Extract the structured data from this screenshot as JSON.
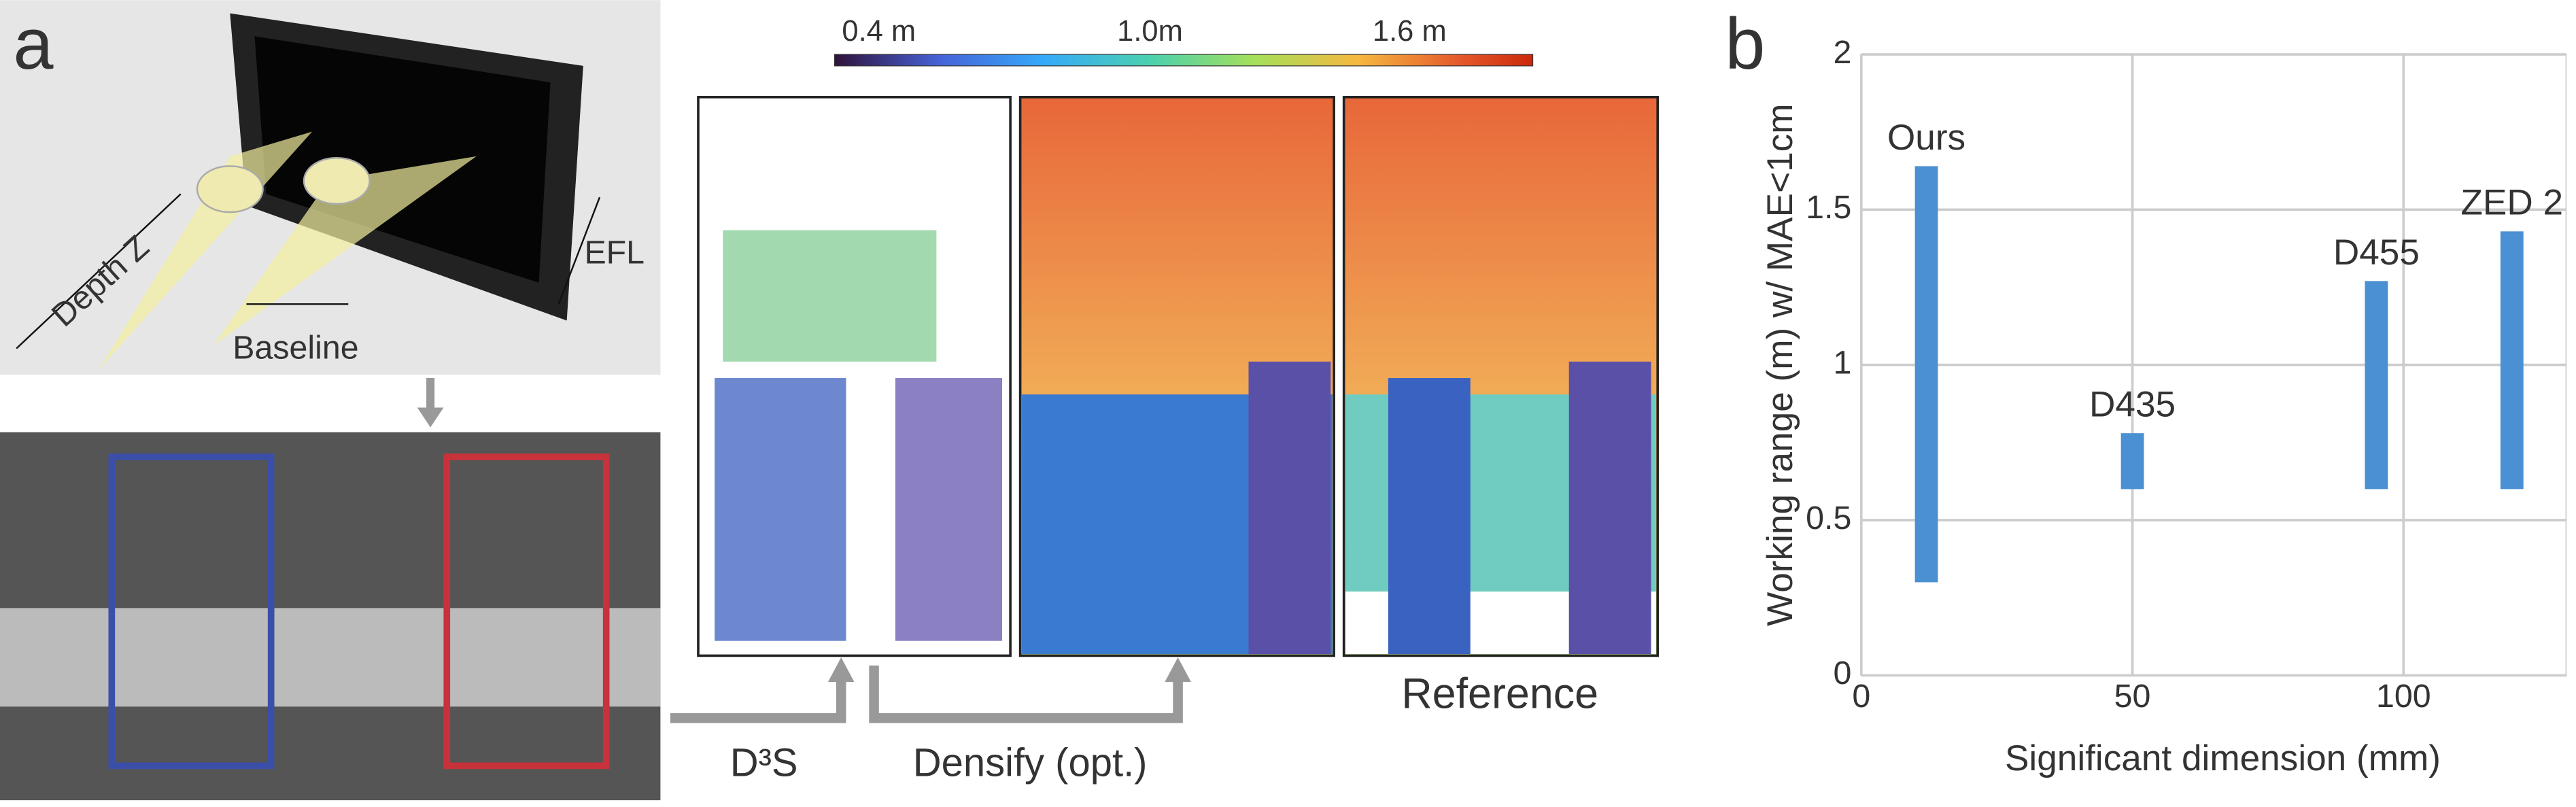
{
  "figure": {
    "panel_a": "a",
    "depth": "Depth Z",
    "baseline": "Baseline",
    "efl": "EFL",
    "colorbar_labels": [
      "0.4 m",
      "1.0m",
      "1.6 m"
    ],
    "step1": "D³S",
    "step2": "Densify (opt.)",
    "reference": "Reference"
  },
  "chart_data": {
    "type": "range-bar",
    "panel_label": "b",
    "x_label": "Significant dimension (mm)",
    "y_label": "Working range (m) w/ MAE<1cm",
    "categories": [
      "Ours",
      "D435",
      "D455",
      "ZED 2"
    ],
    "x": [
      12,
      50,
      95,
      120
    ],
    "low": [
      0.3,
      0.6,
      0.6,
      0.6
    ],
    "high": [
      1.64,
      0.78,
      1.27,
      1.43
    ],
    "color": "#4a90d2",
    "xlim": [
      0,
      130
    ],
    "xticks": [
      0,
      50,
      100
    ],
    "ylim": [
      0,
      2
    ],
    "yticks": [
      0,
      0.5,
      1,
      1.5,
      2
    ],
    "grid": true
  }
}
